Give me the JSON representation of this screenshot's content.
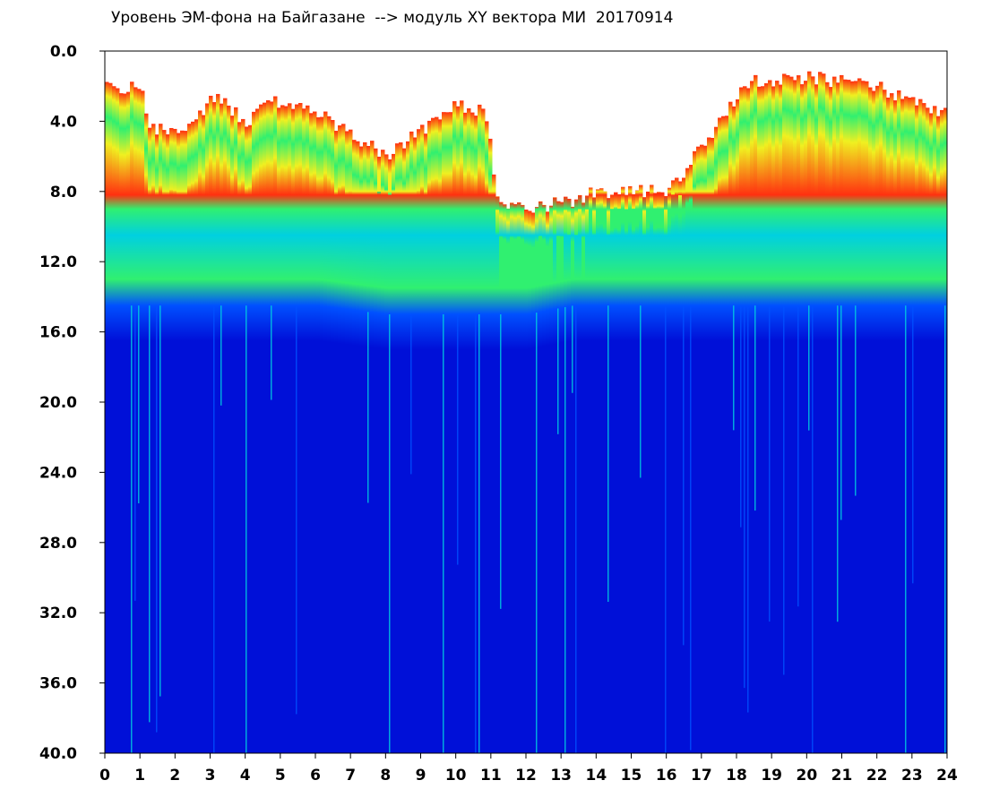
{
  "chart_data": {
    "type": "heatmap",
    "title": "Уровень ЭМ-фона на Байгазане  --> модуль XY вектора МИ  20170914",
    "xlabel": "",
    "ylabel": "",
    "x_ticks": [
      "0",
      "1",
      "2",
      "3",
      "4",
      "5",
      "6",
      "7",
      "8",
      "9",
      "10",
      "11",
      "12",
      "13",
      "14",
      "15",
      "16",
      "17",
      "18",
      "19",
      "20",
      "21",
      "22",
      "23",
      "24"
    ],
    "y_ticks": [
      "0.0",
      "4.0",
      "8.0",
      "12.0",
      "16.0",
      "20.0",
      "24.0",
      "28.0",
      "32.0",
      "36.0",
      "40.0"
    ],
    "xlim": [
      0,
      24
    ],
    "ylim": [
      0,
      40
    ],
    "y_inverted": true,
    "grid": false,
    "colormap": [
      "#0010d8",
      "#0050ff",
      "#00d0e0",
      "#30f070",
      "#f0f020",
      "#ff3010"
    ],
    "intensity_profile": {
      "hours": [
        0,
        1,
        1.2,
        2.5,
        3,
        4,
        4.8,
        6,
        8,
        10,
        10.8,
        11.2,
        12,
        13.3,
        14,
        16,
        17.5,
        18.3,
        20,
        22,
        23,
        24
      ],
      "top_edge": [
        2.0,
        2.2,
        4.5,
        4.2,
        2.5,
        4.0,
        2.8,
        3.5,
        6.0,
        3.0,
        3.5,
        9.0,
        9.0,
        8.5,
        8.0,
        8.0,
        4.0,
        1.8,
        1.5,
        2.0,
        3.0,
        3.5
      ],
      "bright_bottom": [
        14.5,
        14.5,
        14.5,
        14.5,
        14.5,
        14.5,
        14.5,
        14.5,
        15.0,
        15.0,
        15.0,
        15.0,
        15.0,
        14.5,
        14.5,
        14.5,
        14.5,
        14.5,
        14.5,
        14.5,
        14.5,
        14.5
      ]
    }
  }
}
